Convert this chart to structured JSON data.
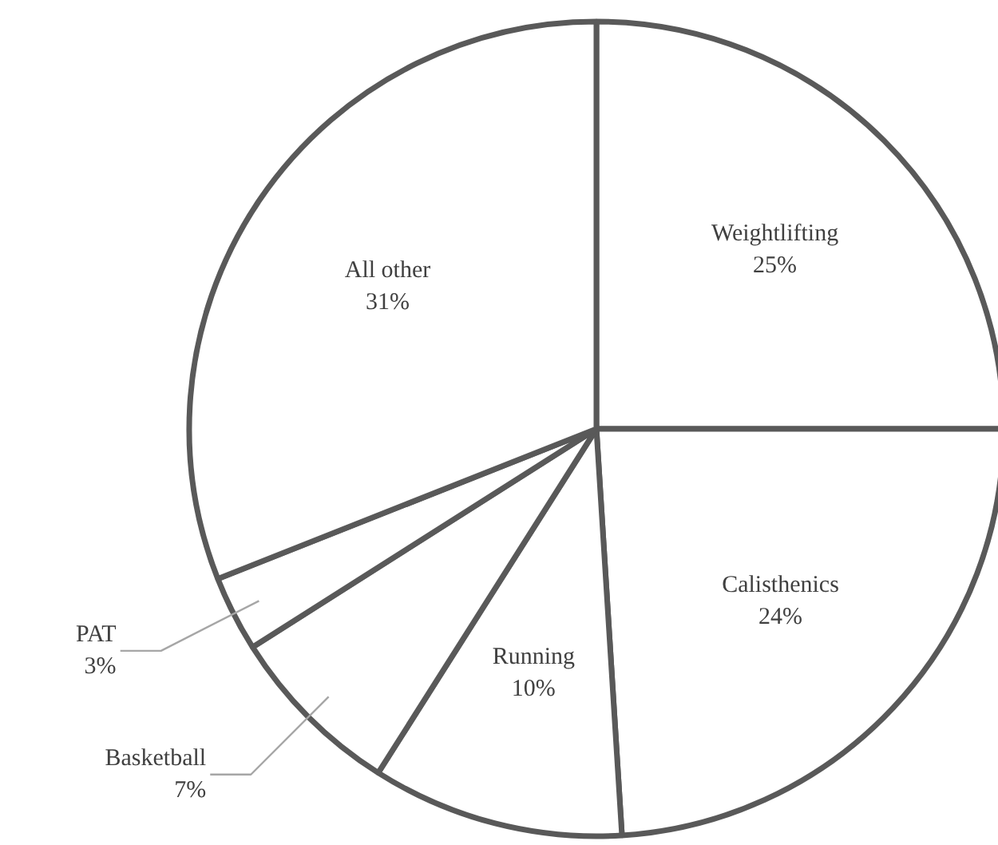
{
  "chart_data": {
    "type": "pie",
    "categories": [
      "Weightlifting",
      "Calisthenics",
      "Running",
      "Basketball",
      "PAT",
      "All other"
    ],
    "values": [
      25,
      24,
      10,
      7,
      3,
      31
    ],
    "colors": [
      "#ffffff",
      "#ffffff",
      "#ffffff",
      "#ffffff",
      "#ffffff",
      "#ffffff"
    ],
    "value_labels": [
      "25%",
      "24%",
      "10%",
      "7%",
      "3%",
      "31%"
    ]
  }
}
